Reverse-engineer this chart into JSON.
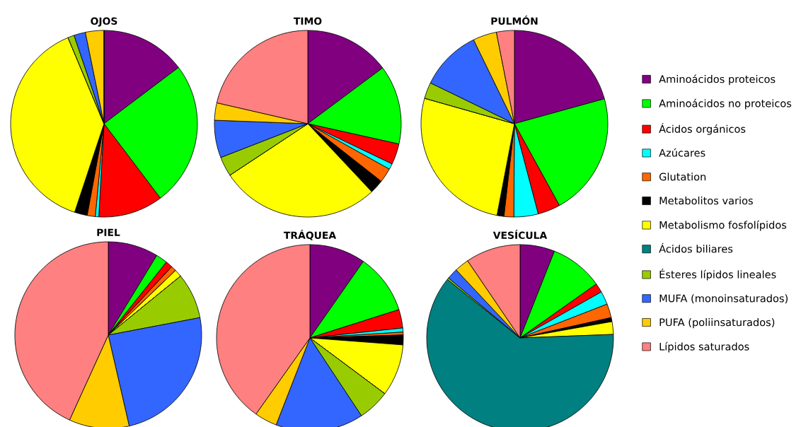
{
  "chart_data": [
    {
      "type": "pie",
      "title": "OJOS",
      "legend": "right",
      "categories": [
        "Aminoácidos proteicos",
        "Aminoácidos no proteicos",
        "Ácidos orgánicos",
        "Azúcares",
        "Glutation",
        "Metabolitos varios",
        "Metabolismo fosfolípidos",
        "Ácidos biliares",
        "Ésteres lípidos lineales",
        "MUFA (monoinsaturados)",
        "PUFA (poliinsaturados)",
        "Lípidos saturados"
      ],
      "colors": [
        "#800080",
        "#00ff00",
        "#ff0000",
        "#00ffff",
        "#ff6600",
        "#000000",
        "#ffff00",
        "#008080",
        "#99cc00",
        "#3366ff",
        "#ffcc00",
        "#ff8080"
      ],
      "values": [
        14.7,
        25,
        11.2,
        0.6,
        1.4,
        2.2,
        38.6,
        0,
        1.1,
        2.0,
        3.2,
        0
      ]
    },
    {
      "type": "pie",
      "title": "TIMO",
      "categories": [
        null,
        null,
        null,
        null,
        null,
        null,
        null,
        null,
        null,
        null,
        null,
        null
      ],
      "colors": [
        "#800080",
        "#00ff00",
        "#ff0000",
        "#00ffff",
        "#ff6600",
        "#000000",
        "#ffff00",
        "#008080",
        "#99cc00",
        "#3366ff",
        "#ffcc00",
        "#ff8080"
      ],
      "values": [
        14.8,
        13.7,
        3.6,
        1,
        2.5,
        2.4,
        27.7,
        0,
        3.4,
        6.5,
        3,
        21.4
      ]
    },
    {
      "type": "pie",
      "title": "PULMÓN",
      "categories": [
        null,
        null,
        null,
        null,
        null,
        null,
        null,
        null,
        null,
        null,
        null,
        null
      ],
      "colors": [
        "#800080",
        "#00ff00",
        "#ff0000",
        "#00ffff",
        "#ff6600",
        "#000000",
        "#ffff00",
        "#008080",
        "#99cc00",
        "#3366ff",
        "#ffcc00",
        "#ff8080"
      ],
      "values": [
        20.7,
        21.3,
        3.9,
        4.2,
        1.7,
        1.2,
        26.4,
        0,
        2.8,
        10.6,
        4.1,
        3.1
      ]
    },
    {
      "type": "pie",
      "title": "PIEL",
      "categories": [
        null,
        null,
        null,
        null,
        null,
        null,
        null,
        null,
        null,
        null,
        null,
        null
      ],
      "colors": [
        "#800080",
        "#00ff00",
        "#ff0000",
        "#00ffff",
        "#ff6600",
        "#000000",
        "#ffff00",
        "#008080",
        "#99cc00",
        "#3366ff",
        "#ffcc00",
        "#ff8080"
      ],
      "values": [
        8.7,
        2,
        1.2,
        0,
        0.9,
        0,
        1.3,
        0,
        7.9,
        24.4,
        10.4,
        43.2
      ]
    },
    {
      "type": "pie",
      "title": "TRÁQUEA",
      "categories": [
        null,
        null,
        null,
        null,
        null,
        null,
        null,
        null,
        null,
        null,
        null,
        null
      ],
      "colors": [
        "#800080",
        "#00ff00",
        "#ff0000",
        "#00ffff",
        "#ff6600",
        "#000000",
        "#ffff00",
        "#008080",
        "#99cc00",
        "#3366ff",
        "#ffcc00",
        "#ff8080"
      ],
      "values": [
        9.7,
        10.4,
        3.2,
        0.7,
        0.5,
        1.7,
        9,
        0,
        5.5,
        15.2,
        3.9,
        40.2
      ]
    },
    {
      "type": "pie",
      "title": "VESÍCULA",
      "categories": [
        null,
        null,
        null,
        null,
        null,
        null,
        null,
        null,
        null,
        null,
        null,
        null
      ],
      "colors": [
        "#800080",
        "#00ff00",
        "#ff0000",
        "#00ffff",
        "#ff6600",
        "#000000",
        "#ffff00",
        "#008080",
        "#99cc00",
        "#3366ff",
        "#ffcc00",
        "#ff8080"
      ],
      "values": [
        6,
        9.2,
        1.6,
        2.3,
        2.4,
        0.7,
        2.2,
        61.4,
        0.3,
        1.9,
        2.5,
        9.5
      ]
    }
  ]
}
